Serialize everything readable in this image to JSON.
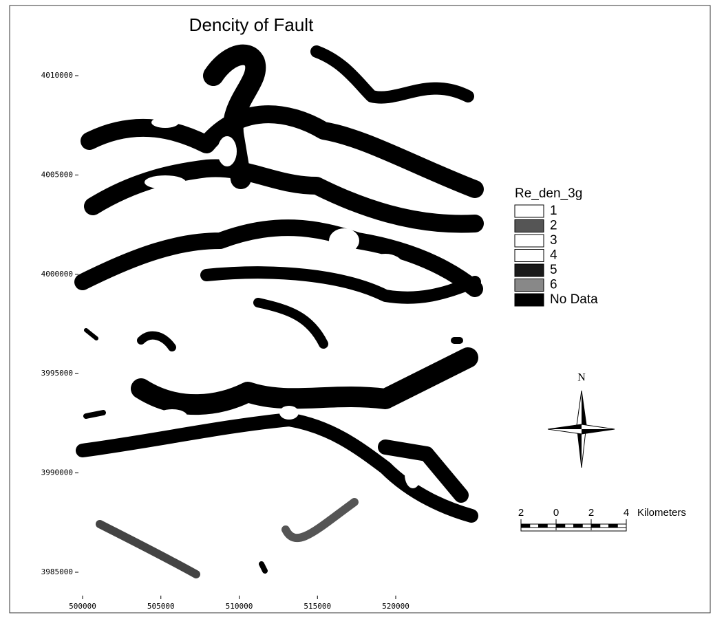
{
  "map": {
    "title": "Dencity of Fault",
    "xlim": [
      500000,
      520000
    ],
    "ylim": [
      3985000,
      4010000
    ],
    "xticks": [
      500000,
      505000,
      510000,
      515000,
      520000
    ],
    "yticks": [
      3985000,
      3990000,
      3995000,
      4000000,
      4005000,
      4010000
    ],
    "legend": {
      "title": "Re_den_3g",
      "items": [
        {
          "label": "1",
          "color": "#ffffff"
        },
        {
          "label": "2",
          "color": "#555555"
        },
        {
          "label": "3",
          "color": "#ffffff"
        },
        {
          "label": "4",
          "color": "#ffffff"
        },
        {
          "label": "5",
          "color": "#1a1a1a"
        },
        {
          "label": "6",
          "color": "#888888"
        },
        {
          "label": "No Data",
          "color": "#000000"
        }
      ]
    },
    "north": "N",
    "scale_bar": {
      "ticks": [
        {
          "value": -2,
          "label": "2"
        },
        0,
        2,
        4
      ],
      "unit": "Kilometers"
    }
  }
}
